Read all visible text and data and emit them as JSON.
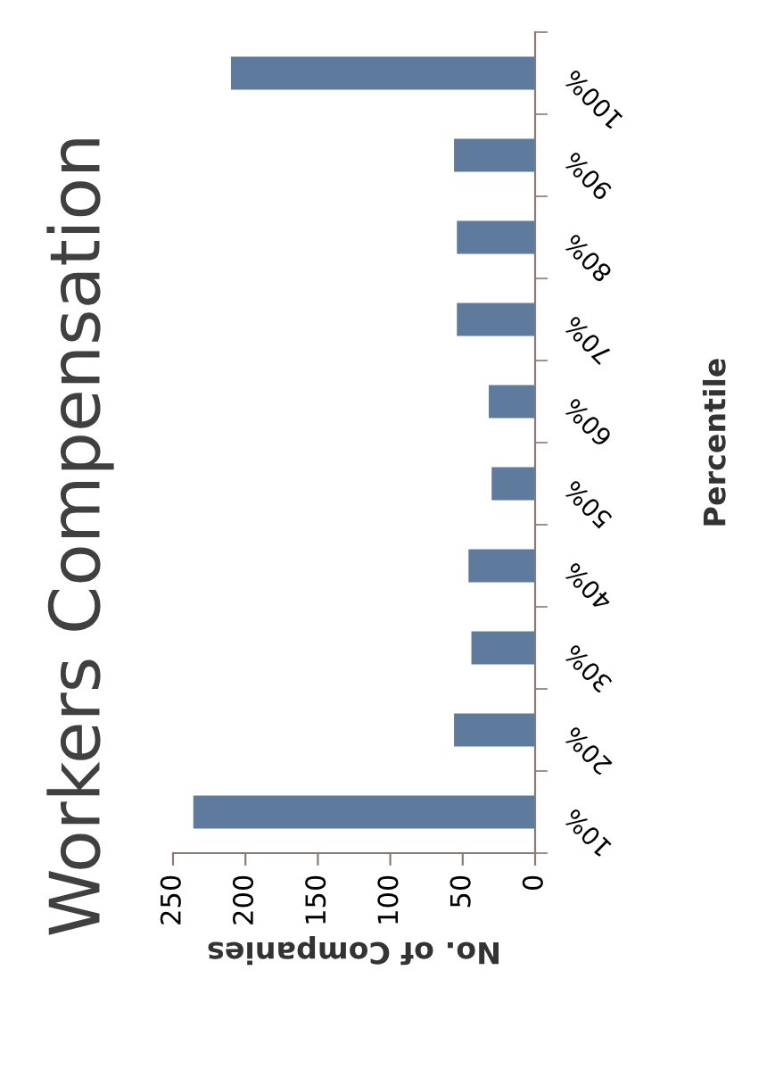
{
  "chart_data": {
    "type": "bar",
    "orientation": "horizontal",
    "title": "Workers Compensation",
    "xlabel": "No. of Companies",
    "ylabel": "Percentile",
    "categories": [
      "100%",
      "90%",
      "80%",
      "70%",
      "60%",
      "50%",
      "40%",
      "30%",
      "20%",
      "10%"
    ],
    "values": [
      210,
      56,
      54,
      54,
      32,
      30,
      46,
      44,
      56,
      236
    ],
    "color": "#5e7a9c",
    "xlim": [
      250,
      0
    ],
    "xticks": [
      0,
      50,
      100,
      150,
      200,
      250
    ],
    "grid": false,
    "legend": false
  }
}
